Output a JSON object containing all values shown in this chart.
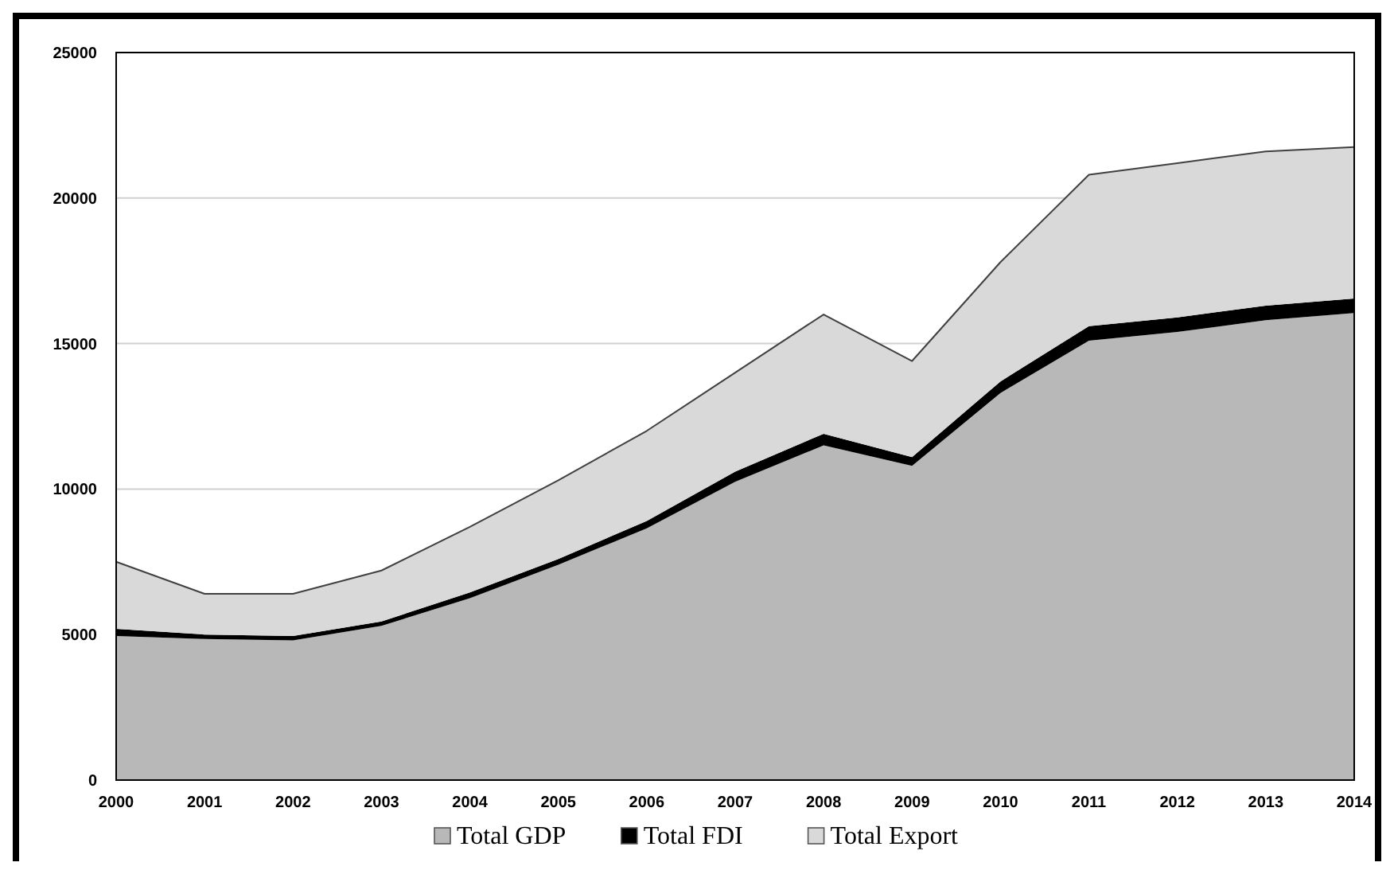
{
  "chart_data": {
    "type": "area",
    "stacked": true,
    "categories": [
      "2000",
      "2001",
      "2002",
      "2003",
      "2004",
      "2005",
      "2006",
      "2007",
      "2008",
      "2009",
      "2010",
      "2011",
      "2012",
      "2013",
      "2014"
    ],
    "series": [
      {
        "name": "Total GDP",
        "color": "#b8b8b8",
        "values": [
          4950,
          4850,
          4800,
          5300,
          6250,
          7400,
          8650,
          10250,
          11500,
          10800,
          13300,
          15100,
          15400,
          15800,
          16050
        ]
      },
      {
        "name": "Total FDI",
        "color": "#000000",
        "values": [
          250,
          150,
          150,
          150,
          200,
          200,
          250,
          350,
          400,
          300,
          400,
          500,
          500,
          500,
          500
        ]
      },
      {
        "name": "Total Export",
        "color": "#d9d9d9",
        "values": [
          2300,
          1400,
          1450,
          1750,
          2250,
          2700,
          3100,
          3400,
          4100,
          3300,
          4100,
          5200,
          5300,
          5300,
          5200
        ]
      }
    ],
    "ylim": [
      0,
      25000
    ],
    "yticks": [
      0,
      5000,
      10000,
      15000,
      20000,
      25000
    ],
    "grid": "y",
    "legend": "bottom"
  }
}
